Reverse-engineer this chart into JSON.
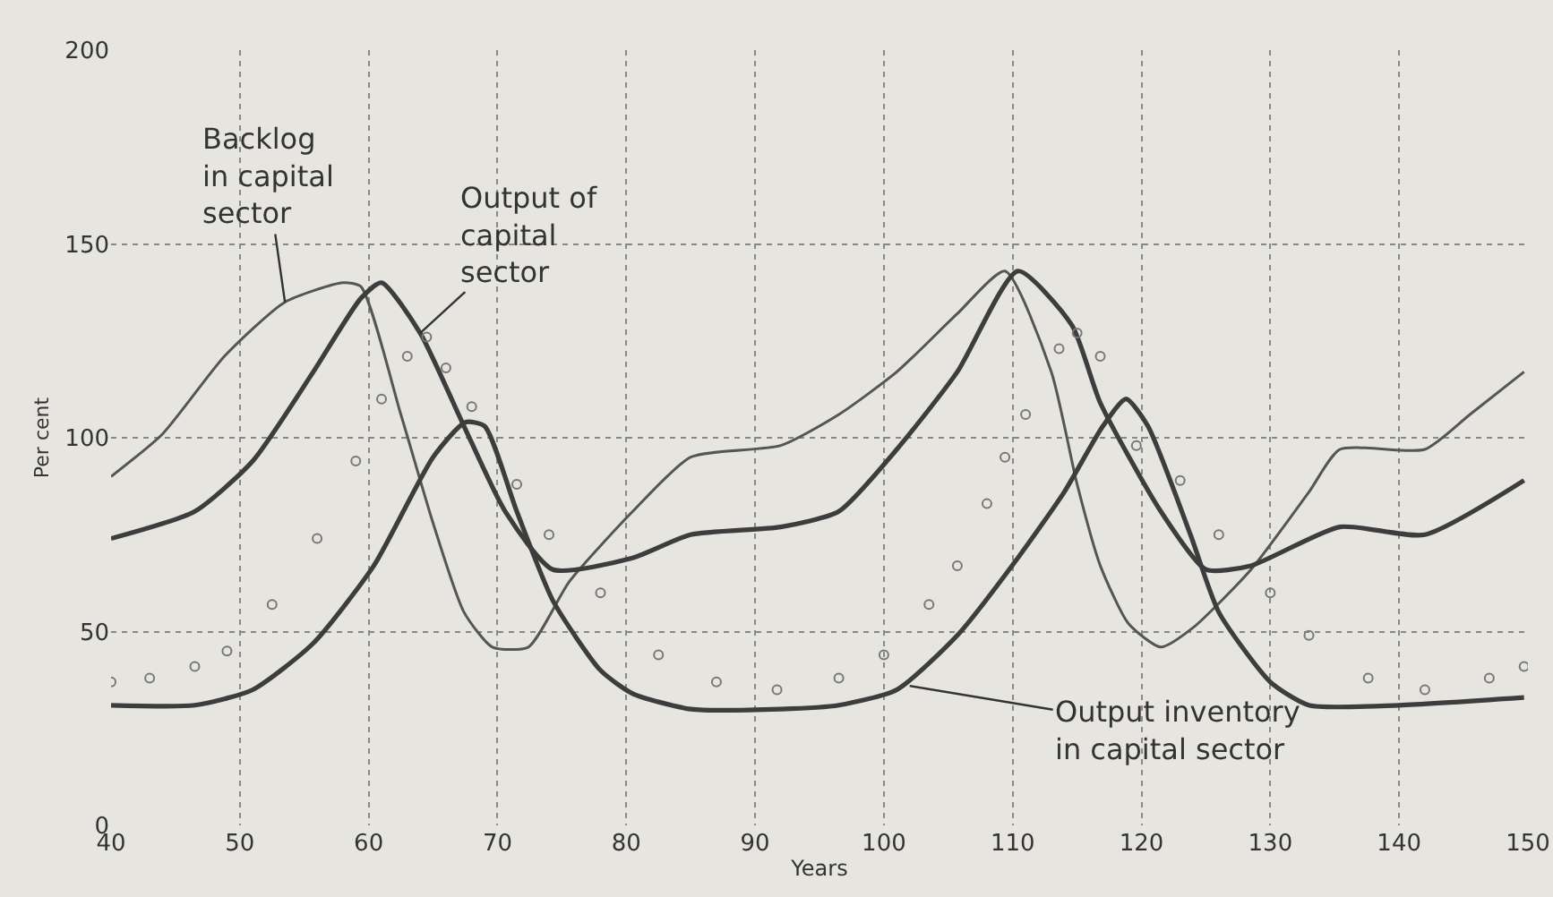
{
  "chart_data": {
    "type": "line",
    "xlabel": "Years",
    "ylabel": "Per cent",
    "xlim": [
      40,
      150
    ],
    "xticks": [
      40,
      50,
      60,
      70,
      80,
      90,
      100,
      110,
      120,
      130,
      140,
      150
    ],
    "ylim": [
      0,
      200
    ],
    "yticks": [
      0,
      50,
      100,
      150,
      200
    ],
    "grid": true,
    "line_style": "solid",
    "series": [
      {
        "color": "#555555",
        "x": [
          40,
          44,
          48.8,
          53.5,
          58,
          59.4,
          62.5,
          65,
          67.4,
          69.6,
          72.4,
          75.6,
          80.5,
          85,
          92,
          96.5,
          101,
          105.7,
          109.4,
          113,
          115,
          116.8,
          119,
          121.5,
          124,
          128.5,
          133,
          135.4,
          142,
          145.5,
          149.7
        ],
        "values": [
          90,
          101,
          121,
          135,
          140,
          139,
          106,
          78,
          55,
          46,
          46,
          63,
          81,
          95,
          98,
          106,
          117,
          132,
          143,
          117,
          88,
          67,
          52,
          46,
          51,
          66,
          86,
          97,
          97,
          106,
          117
        ]
      },
      {
        "color": "#3d3d3d",
        "x": [
          40,
          46.5,
          51,
          55.7,
          59.4,
          61,
          64,
          67.4,
          70.6,
          74.3,
          80.5,
          85,
          92,
          96.5,
          101,
          105.7,
          110.4,
          114.6,
          116.8,
          121.5,
          125,
          128.5,
          135.4,
          142,
          149.7
        ],
        "values": [
          74,
          81,
          94,
          117,
          136,
          140,
          127,
          103,
          81,
          66,
          69,
          75,
          77,
          81,
          97,
          117,
          143,
          129,
          109,
          81,
          66,
          67,
          77,
          75,
          89
        ]
      },
      {
        "color": "#3d3d3d",
        "x": [
          40,
          46.5,
          51,
          55.7,
          60.4,
          65,
          67.5,
          69,
          71.5,
          74.3,
          78,
          80.5,
          85,
          92,
          96.5,
          101,
          105.7,
          110.4,
          114,
          117,
          118.8,
          120.5,
          123.8,
          126,
          130,
          133,
          140,
          149.7
        ],
        "values": [
          31,
          31,
          35,
          47,
          67,
          95,
          104,
          103,
          81,
          58,
          40,
          34,
          30,
          30,
          31,
          35,
          49,
          69,
          86,
          103,
          110,
          103,
          75,
          55,
          37,
          31,
          31,
          33
        ]
      },
      {
        "type": "scatter",
        "marker": "circle",
        "color": "#777777",
        "x": [
          40,
          43,
          46.5,
          49,
          52.5,
          56,
          59,
          61,
          63,
          64.5,
          66,
          68,
          71.5,
          74,
          78,
          82.5,
          87,
          91.7,
          96.5,
          100,
          103.5,
          105.7,
          108,
          109.4,
          111,
          113.6,
          115,
          116.8,
          119.6,
          123,
          126,
          130,
          133,
          137.6,
          142,
          147,
          149.7
        ],
        "values": [
          37,
          38,
          41,
          45,
          57,
          74,
          94,
          110,
          121,
          126,
          118,
          108,
          88,
          75,
          60,
          44,
          37,
          35,
          38,
          44,
          57,
          67,
          83,
          95,
          106,
          123,
          127,
          121,
          98,
          89,
          75,
          60,
          49,
          38,
          35,
          38,
          41
        ]
      }
    ],
    "annotations": [
      {
        "text": "Backlog\nin capital\nsector",
        "x": 53.5,
        "y": 135
      },
      {
        "text": "Output of\ncapital\nsector",
        "x": 64,
        "y": 127
      },
      {
        "text": "Output inventory\nin capital sector",
        "x": 102,
        "y": 36
      }
    ]
  }
}
